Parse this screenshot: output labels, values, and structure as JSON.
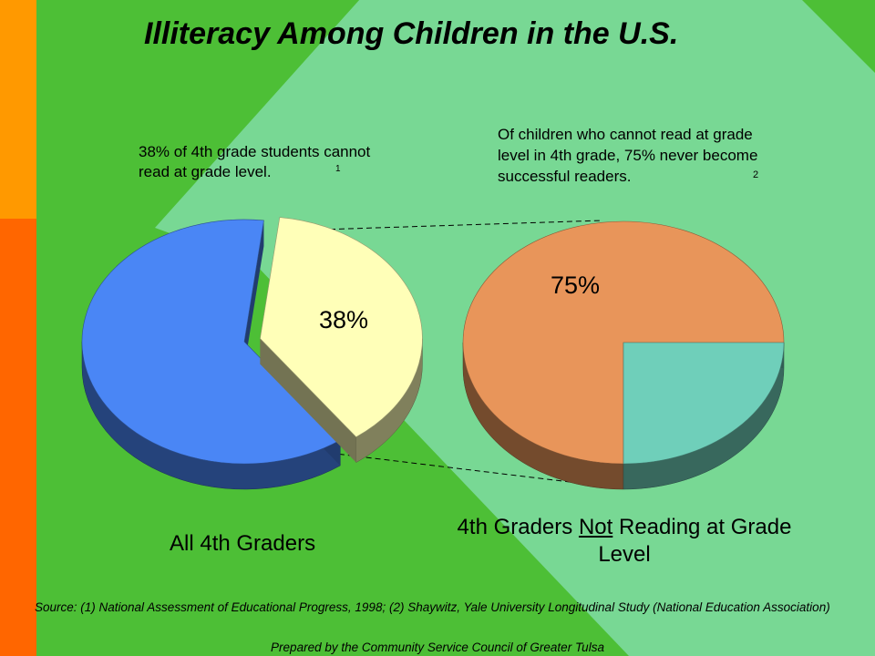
{
  "title": "Illiteracy Among Children in the U.S.",
  "notes": {
    "left": "38% of 4th grade students cannot read at grade level.",
    "left_ref": "1",
    "right": "Of children who cannot read at grade level in 4th grade, 75% never become successful readers.",
    "right_ref": "2"
  },
  "captions": {
    "left": "All 4th Graders",
    "right_pre": "4th Graders ",
    "right_underlined": "Not",
    "right_post": " Reading at Grade Level"
  },
  "source": "Source:  (1) National Assessment of Educational Progress, 1998; (2) Shaywitz, Yale University Longitudinal Study (National Education Association)",
  "prepared_by": "Prepared by the Community Service Council of Greater Tulsa",
  "colors": {
    "background": "#4dbf36",
    "sidebar_top": "#ff9900",
    "sidebar_bottom": "#ff6600",
    "diamond": "#7ad99a",
    "pie_blue": "#4a86f5",
    "pie_yellow": "#ffffb8",
    "pie_orange": "#e8955a",
    "pie_teal": "#6fcfba"
  },
  "chart_data": [
    {
      "type": "pie",
      "title": "All 4th Graders",
      "slices": [
        {
          "label": "38%",
          "value": 38,
          "color": "#ffffb8",
          "exploded": true
        },
        {
          "label": "",
          "value": 62,
          "color": "#4a86f5"
        }
      ]
    },
    {
      "type": "pie",
      "title": "4th Graders Not Reading at Grade Level",
      "slices": [
        {
          "label": "75%",
          "value": 75,
          "color": "#e8955a"
        },
        {
          "label": "",
          "value": 25,
          "color": "#6fcfba"
        }
      ]
    }
  ]
}
